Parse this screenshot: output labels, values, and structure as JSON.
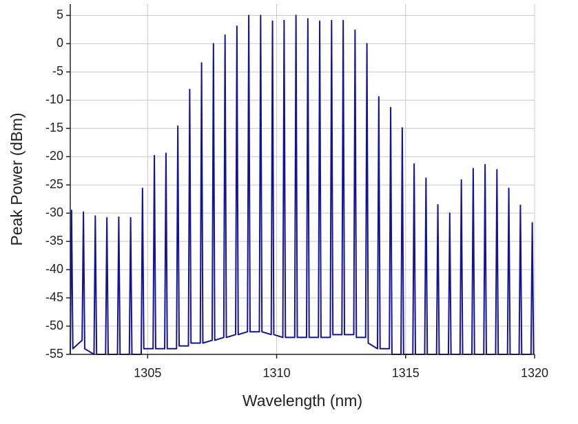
{
  "chart_data": {
    "type": "line",
    "x_label": "Wavelength (nm)",
    "y_label": "Peak Power (dBm)",
    "xlim": [
      1302,
      1320
    ],
    "ylim": [
      -55,
      7
    ],
    "xticks": [
      1305,
      1310,
      1315,
      1320
    ],
    "yticks": [
      -55,
      -50,
      -45,
      -40,
      -35,
      -30,
      -25,
      -20,
      -15,
      -10,
      -5,
      0,
      5
    ],
    "grid": true,
    "color": "#13139a",
    "x": [
      1302.0,
      1302.05,
      1302.1,
      1302.46,
      1302.51,
      1302.56,
      1302.92,
      1302.97,
      1303.02,
      1303.37,
      1303.42,
      1303.47,
      1303.83,
      1303.88,
      1303.93,
      1304.29,
      1304.34,
      1304.39,
      1304.75,
      1304.8,
      1304.85,
      1305.21,
      1305.26,
      1305.31,
      1305.66,
      1305.71,
      1305.76,
      1306.12,
      1306.17,
      1306.22,
      1306.58,
      1306.63,
      1306.68,
      1307.04,
      1307.09,
      1307.14,
      1307.5,
      1307.55,
      1307.6,
      1307.95,
      1308.0,
      1308.05,
      1308.41,
      1308.46,
      1308.51,
      1308.87,
      1308.92,
      1308.97,
      1309.33,
      1309.38,
      1309.43,
      1309.79,
      1309.84,
      1309.89,
      1310.24,
      1310.29,
      1310.34,
      1310.7,
      1310.75,
      1310.8,
      1311.16,
      1311.21,
      1311.26,
      1311.62,
      1311.67,
      1311.72,
      1312.08,
      1312.13,
      1312.18,
      1312.53,
      1312.58,
      1312.63,
      1312.99,
      1313.04,
      1313.09,
      1313.45,
      1313.5,
      1313.55,
      1313.91,
      1313.96,
      1314.01,
      1314.37,
      1314.42,
      1314.47,
      1314.82,
      1314.87,
      1314.92,
      1315.28,
      1315.33,
      1315.38,
      1315.74,
      1315.79,
      1315.84,
      1316.2,
      1316.25,
      1316.3,
      1316.66,
      1316.71,
      1316.76,
      1317.11,
      1317.16,
      1317.21,
      1317.57,
      1317.62,
      1317.67,
      1318.03,
      1318.08,
      1318.13,
      1318.49,
      1318.54,
      1318.59,
      1318.95,
      1319.0,
      1319.05,
      1319.4,
      1319.45,
      1319.5,
      1319.86,
      1319.91,
      1319.96
    ],
    "values": [
      -55,
      -29.5,
      -54,
      -52.5,
      -29.8,
      -54,
      -55,
      -30.5,
      -55,
      -55,
      -30.8,
      -55,
      -55,
      -30.7,
      -55,
      -55,
      -30.8,
      -55,
      -55,
      -25.6,
      -54,
      -54,
      -19.8,
      -54,
      -54,
      -19.4,
      -54,
      -54,
      -14.6,
      -53.5,
      -53.5,
      -8.1,
      -53,
      -53,
      -3.4,
      -53,
      -52.5,
      0,
      -52.5,
      -52,
      1.5,
      -52,
      -51.5,
      3.1,
      -51.5,
      -51,
      5,
      -51,
      -51,
      5,
      -51,
      -51.5,
      4,
      -51.5,
      -52,
      4.1,
      -52,
      -52,
      5,
      -52,
      -52,
      4.4,
      -52,
      -52,
      4,
      -52,
      -52,
      4.1,
      -51.5,
      -51.5,
      4.1,
      -51.5,
      -51.5,
      2.4,
      -52,
      -52,
      0,
      -53,
      -54,
      -9.4,
      -54,
      -54,
      -11.3,
      -55,
      -55,
      -14.9,
      -55,
      -55,
      -21.3,
      -55,
      -55,
      -23.8,
      -55,
      -55,
      -28.5,
      -55,
      -55,
      -30,
      -55,
      -55,
      -24.1,
      -55,
      -55,
      -22.1,
      -55,
      -55,
      -21.4,
      -55,
      -55,
      -22.3,
      -55,
      -55,
      -25.6,
      -55,
      -55,
      -28.6,
      -55,
      -55,
      -31.7,
      -55
    ]
  }
}
